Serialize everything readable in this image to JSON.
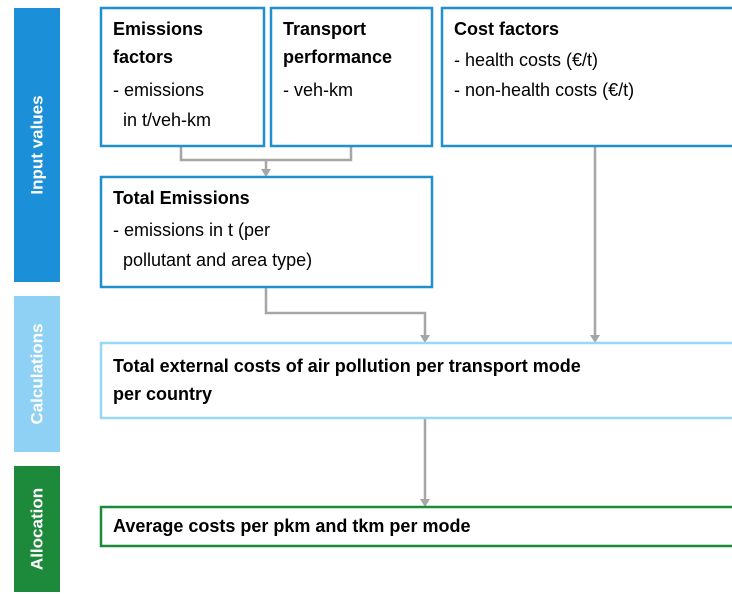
{
  "stages": [
    {
      "label": "Input values"
    },
    {
      "label": "Calculations"
    },
    {
      "label": "Allocation"
    }
  ],
  "nodes": [
    {
      "title": [
        "Emissions",
        "factors"
      ],
      "lines": [
        "- emissions",
        "in t/veh-km"
      ]
    },
    {
      "title": [
        "Transport",
        "performance"
      ],
      "lines": [
        "- veh-km"
      ]
    },
    {
      "title": [
        "Cost factors"
      ],
      "lines": [
        "- health costs (€/t)",
        "- non-health costs (€/t)"
      ]
    },
    {
      "title": [
        "Total Emissions"
      ],
      "lines": [
        "- emissions in t (per",
        "pollutant and area type)"
      ]
    },
    {
      "title": [
        "Total external costs of air pollution per transport mode",
        "per country"
      ],
      "lines": []
    },
    {
      "title": [
        "Average costs per pkm and tkm per mode"
      ],
      "lines": []
    }
  ]
}
